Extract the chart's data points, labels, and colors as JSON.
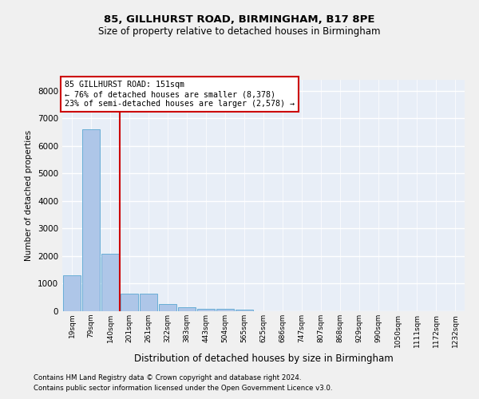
{
  "title1": "85, GILLHURST ROAD, BIRMINGHAM, B17 8PE",
  "title2": "Size of property relative to detached houses in Birmingham",
  "xlabel": "Distribution of detached houses by size in Birmingham",
  "ylabel": "Number of detached properties",
  "footnote1": "Contains HM Land Registry data © Crown copyright and database right 2024.",
  "footnote2": "Contains public sector information licensed under the Open Government Licence v3.0.",
  "bin_labels": [
    "19sqm",
    "79sqm",
    "140sqm",
    "201sqm",
    "261sqm",
    "322sqm",
    "383sqm",
    "443sqm",
    "504sqm",
    "565sqm",
    "625sqm",
    "686sqm",
    "747sqm",
    "807sqm",
    "868sqm",
    "929sqm",
    "990sqm",
    "1050sqm",
    "1111sqm",
    "1172sqm",
    "1232sqm"
  ],
  "bar_values": [
    1300,
    6600,
    2100,
    650,
    640,
    250,
    150,
    100,
    100,
    50,
    0,
    0,
    0,
    0,
    0,
    0,
    0,
    0,
    0,
    0,
    0
  ],
  "bar_color": "#aec6e8",
  "bar_edge_color": "#6aaed6",
  "background_color": "#e8eef7",
  "fig_background_color": "#f0f0f0",
  "grid_color": "#ffffff",
  "vline_x": 2.5,
  "vline_color": "#cc0000",
  "annotation_text": "85 GILLHURST ROAD: 151sqm\n← 76% of detached houses are smaller (8,378)\n23% of semi-detached houses are larger (2,578) →",
  "annotation_box_color": "#cc0000",
  "ylim": [
    0,
    8400
  ],
  "yticks": [
    0,
    1000,
    2000,
    3000,
    4000,
    5000,
    6000,
    7000,
    8000
  ]
}
